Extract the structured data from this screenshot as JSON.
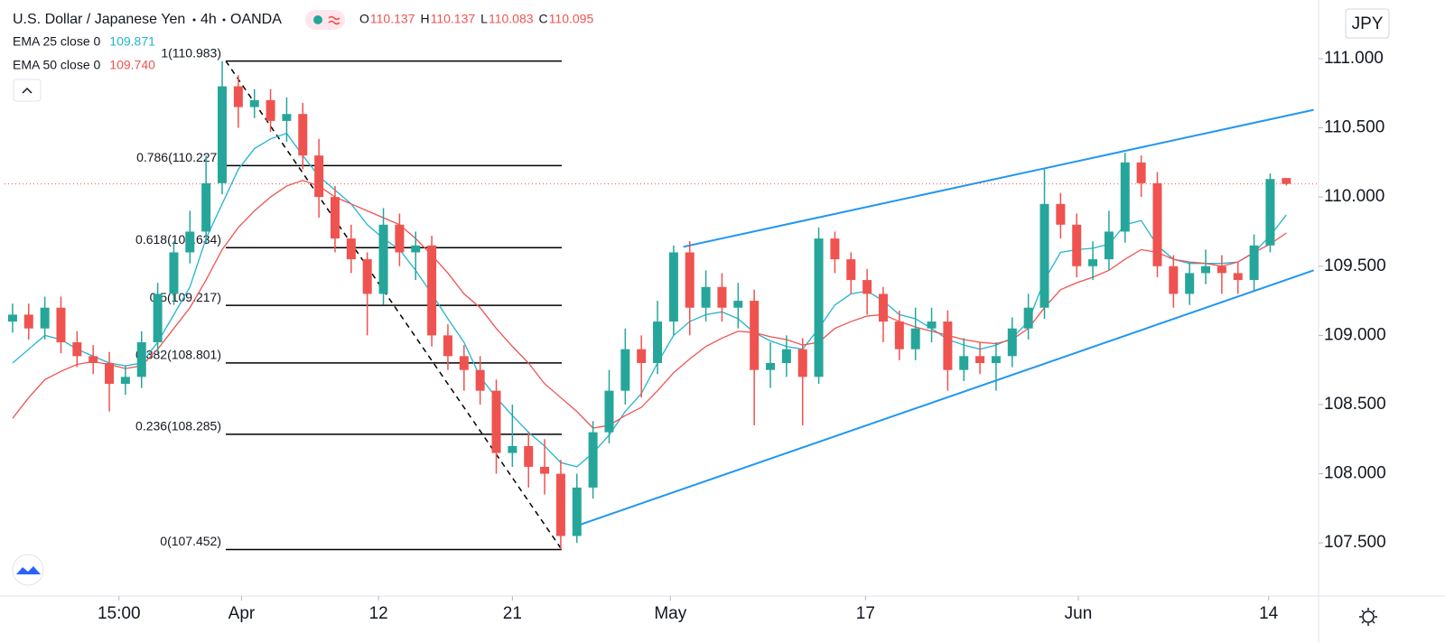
{
  "chart_data": {
    "type": "candlestick",
    "title": "U.S. Dollar / Japanese Yen",
    "interval": "4h",
    "source": "OANDA",
    "currency": "JPY",
    "ohlc_header": [
      {
        "label": "O",
        "value": 110.137
      },
      {
        "label": "H",
        "value": 110.137
      },
      {
        "label": "L",
        "value": 110.083
      },
      {
        "label": "C",
        "value": 110.095
      }
    ],
    "up_color": "#26a69a",
    "down_color": "#ef5350",
    "x": [
      0,
      1,
      2,
      3,
      4,
      5,
      6,
      7,
      8,
      9,
      10,
      11,
      12,
      13,
      14,
      15,
      16,
      17,
      18,
      19,
      20,
      21,
      22,
      23,
      24,
      25,
      26,
      27,
      28,
      29,
      30,
      31,
      32,
      33,
      34,
      35,
      36,
      37,
      38,
      39,
      40,
      41,
      42,
      43,
      44,
      45,
      46,
      47,
      48,
      49,
      50,
      51,
      52,
      53,
      54,
      55,
      56,
      57,
      58,
      59,
      60,
      61,
      62,
      63,
      64,
      65,
      66,
      67,
      68,
      69,
      70,
      71,
      72,
      73,
      74,
      75,
      76,
      77,
      78,
      79
    ],
    "open": [
      109.1,
      109.15,
      109.05,
      109.2,
      108.95,
      108.85,
      108.8,
      108.65,
      108.7,
      108.95,
      109.3,
      109.6,
      109.75,
      110.1,
      110.8,
      110.65,
      110.7,
      110.55,
      110.6,
      110.3,
      110.0,
      109.7,
      109.55,
      109.3,
      109.8,
      109.6,
      109.65,
      109.0,
      108.85,
      108.75,
      108.6,
      108.15,
      108.2,
      108.05,
      108.0,
      107.55,
      107.9,
      108.3,
      108.6,
      108.9,
      108.8,
      109.1,
      109.6,
      109.2,
      109.35,
      109.2,
      109.25,
      108.75,
      108.8,
      108.9,
      108.7,
      109.7,
      109.55,
      109.4,
      109.3,
      109.1,
      108.9,
      109.05,
      109.1,
      108.75,
      108.85,
      108.8,
      108.85,
      109.05,
      109.2,
      109.95,
      109.8,
      109.5,
      109.55,
      109.75,
      110.25,
      110.1,
      109.5,
      109.3,
      109.45,
      109.5,
      109.45,
      109.4,
      109.65,
      110.137
    ],
    "high": [
      109.23,
      109.23,
      109.28,
      109.28,
      109.03,
      108.93,
      108.88,
      108.78,
      109.03,
      109.38,
      109.68,
      109.9,
      110.3,
      110.983,
      110.88,
      110.78,
      110.78,
      110.72,
      110.68,
      110.42,
      110.08,
      109.8,
      109.6,
      109.92,
      109.88,
      109.75,
      109.72,
      109.08,
      108.93,
      108.85,
      108.68,
      108.5,
      108.3,
      108.25,
      108.1,
      108.0,
      108.38,
      108.75,
      109.05,
      109.0,
      109.25,
      109.65,
      109.68,
      109.47,
      109.45,
      109.38,
      109.33,
      108.95,
      109.0,
      108.98,
      109.78,
      109.75,
      109.6,
      109.48,
      109.35,
      109.18,
      109.2,
      109.2,
      109.18,
      108.98,
      108.95,
      108.95,
      109.13,
      109.3,
      110.2,
      110.03,
      109.88,
      109.68,
      109.9,
      110.32,
      110.3,
      110.18,
      109.58,
      109.53,
      109.62,
      109.58,
      109.53,
      109.73,
      110.17,
      110.137
    ],
    "low": [
      109.02,
      108.97,
      108.97,
      108.87,
      108.77,
      108.72,
      108.45,
      108.57,
      108.62,
      108.87,
      109.22,
      109.52,
      109.67,
      110.02,
      110.5,
      110.57,
      110.47,
      110.4,
      110.2,
      109.85,
      109.6,
      109.45,
      109.0,
      109.22,
      109.5,
      109.4,
      108.92,
      108.75,
      108.6,
      108.5,
      108.0,
      108.05,
      107.9,
      107.85,
      107.452,
      107.5,
      107.82,
      108.22,
      108.5,
      108.55,
      108.72,
      109.0,
      109.0,
      109.1,
      109.1,
      109.05,
      108.35,
      108.62,
      108.7,
      108.35,
      108.65,
      109.45,
      109.3,
      109.15,
      108.95,
      108.82,
      108.82,
      108.95,
      108.6,
      108.67,
      108.72,
      108.6,
      108.77,
      108.97,
      109.12,
      109.7,
      109.42,
      109.4,
      109.47,
      109.67,
      110.0,
      109.42,
      109.2,
      109.22,
      109.37,
      109.3,
      109.3,
      109.32,
      109.6,
      110.083
    ],
    "close": [
      109.15,
      109.05,
      109.2,
      108.95,
      108.85,
      108.8,
      108.65,
      108.7,
      108.95,
      109.3,
      109.6,
      109.75,
      110.1,
      110.8,
      110.65,
      110.7,
      110.55,
      110.6,
      110.3,
      110.0,
      109.7,
      109.55,
      109.3,
      109.8,
      109.6,
      109.65,
      109.0,
      108.85,
      108.75,
      108.6,
      108.15,
      108.2,
      108.05,
      108.0,
      107.55,
      107.9,
      108.3,
      108.6,
      108.9,
      108.8,
      109.1,
      109.6,
      109.2,
      109.35,
      109.2,
      109.25,
      108.75,
      108.8,
      108.9,
      108.7,
      109.7,
      109.55,
      109.4,
      109.3,
      109.1,
      108.9,
      109.05,
      109.1,
      108.75,
      108.85,
      108.8,
      108.85,
      109.05,
      109.2,
      109.95,
      109.8,
      109.5,
      109.55,
      109.75,
      110.25,
      110.1,
      109.5,
      109.3,
      109.45,
      109.5,
      109.45,
      109.4,
      109.65,
      110.13,
      110.095
    ],
    "series": [
      {
        "name": "EMA 25 close 0",
        "color": "#22b5d0",
        "last": {
          "value": 109.871,
          "label": "109.871"
        },
        "values": [
          108.8,
          108.9,
          109.0,
          108.97,
          108.9,
          108.85,
          108.8,
          108.78,
          108.8,
          108.95,
          109.15,
          109.35,
          109.7,
          109.95,
          110.2,
          110.35,
          110.42,
          110.46,
          110.3,
          110.15,
          110.05,
          109.95,
          109.8,
          109.7,
          109.62,
          109.47,
          109.3,
          109.12,
          108.95,
          108.7,
          108.55,
          108.42,
          108.3,
          108.2,
          108.08,
          108.05,
          108.15,
          108.28,
          108.45,
          108.58,
          108.8,
          109.0,
          109.1,
          109.15,
          109.17,
          109.12,
          109.02,
          108.96,
          108.92,
          108.9,
          109.05,
          109.22,
          109.3,
          109.32,
          109.25,
          109.15,
          109.12,
          109.05,
          108.97,
          108.93,
          108.9,
          108.93,
          108.98,
          109.1,
          109.4,
          109.6,
          109.62,
          109.63,
          109.66,
          109.8,
          109.83,
          109.65,
          109.55,
          109.52,
          109.52,
          109.52,
          109.53,
          109.6,
          109.72,
          109.871
        ]
      },
      {
        "name": "EMA 50 close 0",
        "color": "#ef5350",
        "last": {
          "value": 109.74,
          "label": "109.740"
        },
        "values": [
          108.4,
          108.55,
          108.68,
          108.74,
          108.79,
          108.81,
          108.79,
          108.76,
          108.78,
          108.9,
          109.05,
          109.2,
          109.4,
          109.62,
          109.78,
          109.9,
          110.0,
          110.08,
          110.12,
          110.08,
          110.0,
          109.95,
          109.9,
          109.85,
          109.8,
          109.7,
          109.58,
          109.45,
          109.3,
          109.2,
          109.05,
          108.92,
          108.8,
          108.65,
          108.55,
          108.45,
          108.33,
          108.35,
          108.42,
          108.48,
          108.6,
          108.73,
          108.83,
          108.92,
          108.98,
          109.03,
          109.02,
          108.99,
          108.97,
          108.93,
          108.95,
          109.05,
          109.1,
          109.14,
          109.15,
          109.1,
          109.06,
          109.03,
          109.0,
          108.97,
          108.95,
          108.94,
          108.97,
          109.05,
          109.2,
          109.33,
          109.38,
          109.42,
          109.47,
          109.55,
          109.62,
          109.6,
          109.55,
          109.53,
          109.52,
          109.5,
          109.53,
          109.6,
          109.66,
          109.74
        ]
      }
    ],
    "fib_levels": [
      {
        "label": "1(110.983)",
        "value": 110.983
      },
      {
        "label": "0.786(110.227)",
        "value": 110.227
      },
      {
        "label": "0.618(109.634)",
        "value": 109.634
      },
      {
        "label": "0.5(109.217)",
        "value": 109.217
      },
      {
        "label": "0.382(108.801)",
        "value": 108.801
      },
      {
        "label": "0.236(108.285)",
        "value": 108.285
      },
      {
        "label": "0(107.452)",
        "value": 107.452
      }
    ],
    "trendline_color": "#2196f3",
    "trendlines": [
      {
        "x": [
          34.9,
          80.7
        ],
        "y": [
          107.62,
          109.47
        ]
      },
      {
        "x": [
          41.6,
          80.7
        ],
        "y": [
          109.64,
          110.63
        ]
      }
    ],
    "xlim": [
      -0.5,
      81.0
    ],
    "xticks": [
      {
        "value": 6.6,
        "label": "15:00"
      },
      {
        "value": 14.2,
        "label": "Apr"
      },
      {
        "value": 22.7,
        "label": "12"
      },
      {
        "value": 31.0,
        "label": "21"
      },
      {
        "value": 40.8,
        "label": "May"
      },
      {
        "value": 52.9,
        "label": "17"
      },
      {
        "value": 66.1,
        "label": "Jun"
      },
      {
        "value": 77.9,
        "label": "14"
      }
    ],
    "ylim": [
      107.116,
      111.424
    ],
    "yticks": [
      {
        "value": 107.5,
        "label": "107.500"
      },
      {
        "value": 108,
        "label": "108.000"
      },
      {
        "value": 108.5,
        "label": "108.500"
      },
      {
        "value": 109,
        "label": "109.000"
      },
      {
        "value": 109.5,
        "label": "109.500"
      },
      {
        "value": 110,
        "label": "110.000"
      },
      {
        "value": 110.5,
        "label": "110.500"
      },
      {
        "value": 111,
        "label": "111.000"
      }
    ]
  }
}
